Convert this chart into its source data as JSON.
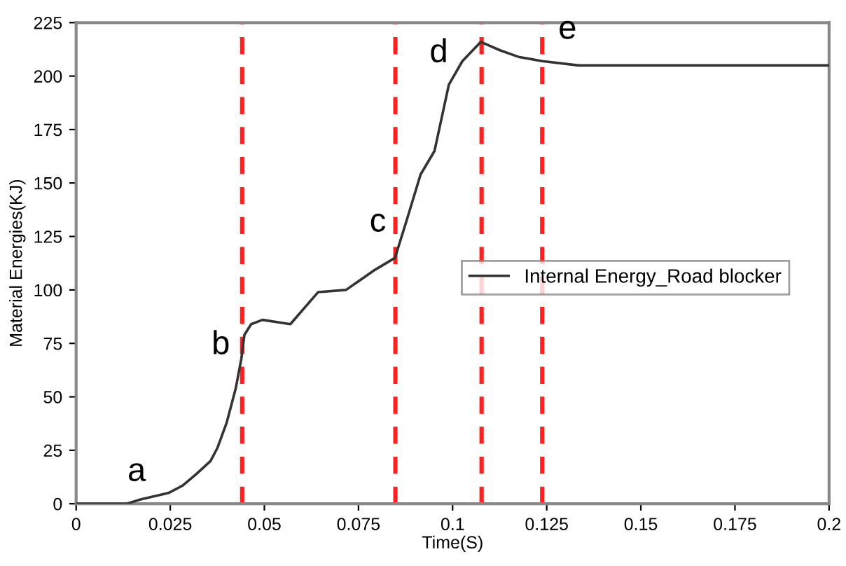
{
  "chart_data": {
    "type": "line",
    "xlabel": "Time(S)",
    "ylabel": "Material Energies(KJ)",
    "xlim": [
      0,
      0.2
    ],
    "ylim": [
      0,
      225
    ],
    "xticks": [
      0,
      0.025,
      0.05,
      0.075,
      0.1,
      0.125,
      0.15,
      0.175,
      {
        "value": 0.2,
        "label": "0.2"
      }
    ],
    "yticks": [
      0,
      25,
      50,
      75,
      100,
      125,
      150,
      175,
      200,
      225
    ],
    "grid": false,
    "legend": "right",
    "marker": "none",
    "line_style": "solid",
    "series": [
      {
        "name": "Internal Energy_Road blocker",
        "color": "#333333",
        "x": [
          0,
          0.0134,
          0.0171,
          0.0245,
          0.0283,
          0.032,
          0.0357,
          0.0375,
          0.04,
          0.0424,
          0.0439,
          0.0447,
          0.0465,
          0.0495,
          0.0569,
          0.0643,
          0.0717,
          0.079,
          0.0847,
          0.0877,
          0.0915,
          0.0952,
          0.099,
          0.1026,
          0.1075,
          0.1127,
          0.1175,
          0.1238,
          0.1335,
          0.2
        ],
        "values": [
          0,
          0,
          2,
          5,
          8.5,
          14,
          20,
          26,
          38,
          54,
          68,
          79,
          84,
          86,
          84,
          99,
          100,
          109,
          115,
          132,
          154,
          165,
          196,
          207,
          216,
          212,
          209,
          207,
          205,
          205
        ]
      }
    ],
    "ref_lines": [
      {
        "axis": "x",
        "value": 0.0441,
        "color": "#ff2020",
        "line_style": "dashed"
      },
      {
        "axis": "x",
        "value": 0.0848,
        "color": "#ff2020",
        "line_style": "dashed"
      },
      {
        "axis": "x",
        "value": 0.1077,
        "color": "#ff2020",
        "line_style": "dashed"
      },
      {
        "axis": "x",
        "value": 0.1238,
        "color": "#ff2020",
        "line_style": "dashed"
      }
    ],
    "annotations": [
      {
        "text": "a",
        "x": 0.0171,
        "y": 2
      },
      {
        "text": "b",
        "x": 0.0441,
        "y": 74
      },
      {
        "text": "c",
        "x": 0.0848,
        "y": 115
      },
      {
        "text": "d",
        "x": 0.1077,
        "y": 216
      },
      {
        "text": "e",
        "x": 0.1238,
        "y": 207
      }
    ]
  }
}
